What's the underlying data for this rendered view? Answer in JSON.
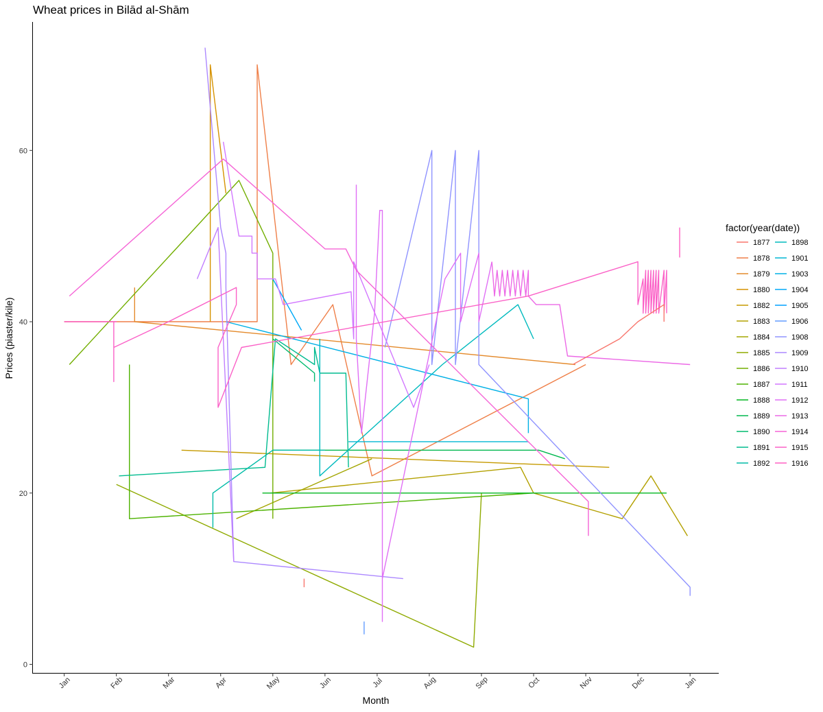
{
  "chart_data": {
    "type": "line",
    "title": "Wheat prices in Bilād al-Shām",
    "xlabel": "Month",
    "ylabel": "Prices (piaster/kile)",
    "x_unit": "month (1 = Jan 1, 13 = Jan 1 of next year)",
    "xlim": [
      0.4,
      13.55
    ],
    "ylim": [
      -1,
      75
    ],
    "x_ticks": [
      {
        "v": 1,
        "label": "Jan"
      },
      {
        "v": 2,
        "label": "Feb"
      },
      {
        "v": 3,
        "label": "Mar"
      },
      {
        "v": 4,
        "label": "Apr"
      },
      {
        "v": 5,
        "label": "May"
      },
      {
        "v": 6,
        "label": "Jun"
      },
      {
        "v": 7,
        "label": "Jul"
      },
      {
        "v": 8,
        "label": "Aug"
      },
      {
        "v": 9,
        "label": "Sep"
      },
      {
        "v": 10,
        "label": "Oct"
      },
      {
        "v": 11,
        "label": "Nov"
      },
      {
        "v": 12,
        "label": "Dec"
      },
      {
        "v": 13,
        "label": "Jan"
      }
    ],
    "y_ticks": [
      {
        "v": 0,
        "label": "0"
      },
      {
        "v": 20,
        "label": "20"
      },
      {
        "v": 40,
        "label": "40"
      },
      {
        "v": 60,
        "label": "60"
      }
    ],
    "grid": false,
    "legend_title": "factor(year(date))",
    "legend_position": "right",
    "series": [
      {
        "name": "1877",
        "color": "#F8766D",
        "points": []
      },
      {
        "name": "1878",
        "color": "#EF7F48",
        "points": [
          [
            1.0,
            40
          ],
          [
            4.7,
            40
          ],
          [
            4.7,
            70
          ],
          [
            5.35,
            35
          ],
          [
            6.15,
            42
          ],
          [
            6.9,
            22
          ],
          [
            11.0,
            35
          ]
        ]
      },
      {
        "name": "1879",
        "color": "#E48A2C",
        "points": [
          [
            2.35,
            44
          ],
          [
            2.35,
            40
          ],
          [
            10.8,
            35
          ]
        ]
      },
      {
        "name": "1880",
        "color": "#D69200",
        "points": [
          [
            3.8,
            40
          ],
          [
            3.8,
            70
          ],
          [
            4.1,
            55
          ]
        ]
      },
      {
        "name": "1882",
        "color": "#C59A00",
        "points": [
          [
            3.25,
            25
          ],
          [
            11.45,
            23
          ]
        ]
      },
      {
        "name": "1883",
        "color": "#B3A000",
        "points": [
          [
            4.95,
            20
          ],
          [
            9.75,
            23
          ],
          [
            10.0,
            20
          ],
          [
            11.7,
            17
          ],
          [
            12.25,
            22
          ],
          [
            12.95,
            15
          ]
        ]
      },
      {
        "name": "1884",
        "color": "#A3A500",
        "points": [
          [
            4.3,
            17
          ],
          [
            6.9,
            24
          ]
        ]
      },
      {
        "name": "1885",
        "color": "#8FAA00",
        "points": [
          [
            2.0,
            21
          ],
          [
            8.85,
            2
          ],
          [
            9.0,
            20
          ]
        ]
      },
      {
        "name": "1886",
        "color": "#72AE00",
        "points": [
          [
            1.1,
            35
          ],
          [
            4.35,
            56.5
          ],
          [
            5.0,
            48
          ],
          [
            5.0,
            17
          ]
        ]
      },
      {
        "name": "1887",
        "color": "#4DB200",
        "points": [
          [
            2.25,
            35
          ],
          [
            2.25,
            17
          ],
          [
            10.0,
            20
          ]
        ]
      },
      {
        "name": "1888",
        "color": "#00B61F",
        "points": [
          [
            4.8,
            20
          ],
          [
            12.55,
            20
          ]
        ]
      },
      {
        "name": "1889",
        "color": "#00B84F",
        "points": [
          [
            5.0,
            25
          ],
          [
            10.1,
            25
          ],
          [
            10.6,
            24
          ]
        ]
      },
      {
        "name": "1890",
        "color": "#00BB6F",
        "points": [
          [
            5.0,
            38
          ],
          [
            5.8,
            34
          ],
          [
            5.8,
            33
          ]
        ]
      },
      {
        "name": "1891",
        "color": "#00BB8F",
        "points": [
          [
            2.05,
            22
          ],
          [
            4.85,
            23
          ],
          [
            5.05,
            38
          ],
          [
            5.8,
            35
          ],
          [
            5.8,
            37
          ],
          [
            5.9,
            34
          ],
          [
            6.4,
            34
          ],
          [
            6.45,
            23
          ]
        ]
      },
      {
        "name": "1892",
        "color": "#00BBA7",
        "points": [
          [
            3.85,
            20
          ],
          [
            3.85,
            16
          ],
          [
            3.85,
            20
          ],
          [
            5.0,
            25
          ],
          [
            6.0,
            25
          ]
        ]
      },
      {
        "name": "1898",
        "color": "#00BABE",
        "points": [
          [
            5.9,
            38
          ],
          [
            5.9,
            22
          ],
          [
            8.25,
            35
          ],
          [
            9.7,
            42
          ],
          [
            10.0,
            38
          ]
        ]
      },
      {
        "name": "1901",
        "color": "#00B6D3",
        "points": [
          [
            6.45,
            26
          ],
          [
            9.9,
            26
          ]
        ]
      },
      {
        "name": "1903",
        "color": "#00B0E6",
        "points": [
          [
            4.1,
            40
          ],
          [
            9.9,
            31
          ],
          [
            9.9,
            27
          ]
        ]
      },
      {
        "name": "1904",
        "color": "#00A9F7",
        "points": [
          [
            5.0,
            45
          ],
          [
            5.55,
            39
          ]
        ]
      },
      {
        "name": "1905",
        "color": "#00A0FF",
        "points": []
      },
      {
        "name": "1906",
        "color": "#629CFF",
        "points": [
          [
            6.75,
            5
          ],
          [
            6.75,
            3.5
          ]
        ]
      },
      {
        "name": "1908",
        "color": "#8F93FF",
        "points": [
          [
            7.15,
            37
          ],
          [
            8.05,
            60
          ],
          [
            8.05,
            35
          ],
          [
            8.5,
            60
          ],
          [
            8.5,
            35
          ],
          [
            8.95,
            60
          ],
          [
            8.95,
            35
          ],
          [
            13.0,
            9
          ],
          [
            13.0,
            8
          ]
        ]
      },
      {
        "name": "1909",
        "color": "#AC88FF",
        "points": [
          [
            3.7,
            72
          ],
          [
            4.0,
            51
          ],
          [
            4.1,
            48
          ],
          [
            4.1,
            44
          ],
          [
            4.25,
            12
          ],
          [
            7.5,
            10
          ]
        ]
      },
      {
        "name": "1910",
        "color": "#C17EFF",
        "points": [
          [
            3.55,
            45
          ],
          [
            3.95,
            51
          ],
          [
            4.25,
            12
          ]
        ]
      },
      {
        "name": "1911",
        "color": "#D277FF",
        "points": [
          [
            4.05,
            61
          ],
          [
            4.35,
            50
          ],
          [
            4.6,
            50
          ],
          [
            4.6,
            48
          ],
          [
            4.7,
            48
          ],
          [
            4.7,
            45
          ],
          [
            5.05,
            45
          ],
          [
            5.2,
            42
          ],
          [
            6.5,
            43.5
          ],
          [
            6.55,
            38
          ],
          [
            6.55,
            47
          ],
          [
            7.7,
            30
          ],
          [
            8.0,
            35
          ]
        ]
      },
      {
        "name": "1912",
        "color": "#E06FF5",
        "points": [
          [
            6.6,
            56
          ],
          [
            6.6,
            38
          ],
          [
            6.7,
            27
          ],
          [
            6.95,
            41
          ],
          [
            7.05,
            53
          ],
          [
            7.1,
            53
          ],
          [
            7.1,
            5
          ],
          [
            7.1,
            10
          ],
          [
            8.3,
            45
          ],
          [
            8.6,
            48
          ],
          [
            8.6,
            40
          ],
          [
            8.95,
            48
          ],
          [
            8.95,
            40
          ],
          [
            9.2,
            47
          ]
        ]
      },
      {
        "name": "1913",
        "color": "#EC69E6",
        "points": [
          [
            9.2,
            47
          ],
          [
            9.25,
            43
          ],
          [
            9.3,
            46
          ],
          [
            9.35,
            43
          ],
          [
            9.4,
            46
          ],
          [
            9.45,
            43
          ],
          [
            9.5,
            46
          ],
          [
            9.55,
            43
          ],
          [
            9.6,
            46
          ],
          [
            9.65,
            43
          ],
          [
            9.7,
            46
          ],
          [
            9.75,
            43
          ],
          [
            9.8,
            46
          ],
          [
            9.85,
            43
          ],
          [
            9.9,
            46
          ],
          [
            9.9,
            43
          ],
          [
            10.05,
            42
          ],
          [
            10.5,
            42
          ],
          [
            10.65,
            36
          ],
          [
            13.0,
            35
          ]
        ]
      },
      {
        "name": "1914",
        "color": "#F564D6",
        "points": [
          [
            1.1,
            43
          ],
          [
            4.05,
            59
          ],
          [
            6.0,
            48.5
          ],
          [
            6.4,
            48.5
          ],
          [
            6.6,
            46
          ],
          [
            11.05,
            19
          ],
          [
            11.05,
            15
          ]
        ]
      },
      {
        "name": "1915",
        "color": "#FB61C7",
        "points": [
          [
            1.0,
            40
          ],
          [
            2.0,
            40
          ],
          [
            1.95,
            40
          ],
          [
            1.95,
            33
          ],
          [
            1.95,
            37
          ],
          [
            3.0,
            40
          ],
          [
            4.3,
            44
          ],
          [
            4.3,
            42
          ],
          [
            3.95,
            37
          ],
          [
            3.95,
            30
          ],
          [
            4.4,
            37
          ],
          [
            9.9,
            43
          ],
          [
            12.0,
            47
          ],
          [
            12.0,
            42
          ],
          [
            12.1,
            45
          ],
          [
            12.1,
            41
          ],
          [
            12.15,
            46
          ],
          [
            12.15,
            41
          ],
          [
            12.2,
            46
          ],
          [
            12.2,
            41
          ],
          [
            12.25,
            46
          ],
          [
            12.25,
            41
          ],
          [
            12.3,
            46
          ],
          [
            12.3,
            41
          ],
          [
            12.35,
            46
          ],
          [
            12.35,
            41
          ],
          [
            12.4,
            46
          ],
          [
            12.4,
            41
          ],
          [
            12.5,
            46
          ],
          [
            12.5,
            41
          ],
          [
            12.55,
            46
          ],
          [
            12.55,
            41
          ]
        ]
      },
      {
        "name": "1916",
        "color": "#FF61C3",
        "points": [
          [
            12.8,
            51
          ],
          [
            12.8,
            47.5
          ]
        ]
      },
      {
        "name": "1916b",
        "legend": false,
        "color": "#F8766D",
        "points": [
          [
            5.6,
            10
          ],
          [
            5.6,
            9
          ]
        ]
      },
      {
        "name": "1877b",
        "legend": false,
        "color": "#F8766D",
        "points": [
          [
            10.75,
            35
          ],
          [
            11.65,
            38
          ],
          [
            12.0,
            40
          ],
          [
            12.5,
            42
          ],
          [
            12.5,
            40
          ]
        ]
      }
    ]
  }
}
